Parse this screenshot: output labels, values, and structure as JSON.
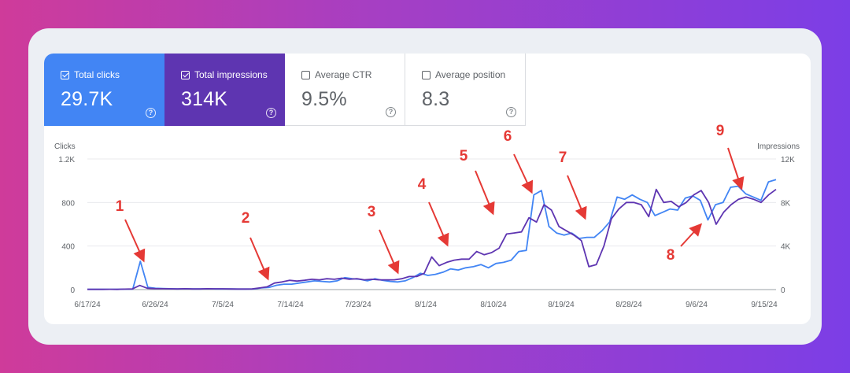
{
  "metrics": [
    {
      "label": "Total clicks",
      "value": "29.7K",
      "selected": true,
      "color": "#4285f4"
    },
    {
      "label": "Total impressions",
      "value": "314K",
      "selected": true,
      "color": "#5e35b1"
    },
    {
      "label": "Average CTR",
      "value": "9.5%",
      "selected": false
    },
    {
      "label": "Average position",
      "value": "8.3",
      "selected": false
    }
  ],
  "help_icon": "?",
  "chart": {
    "left_title": "Clicks",
    "right_title": "Impressions",
    "left_ticks": [
      "0",
      "400",
      "800",
      "1.2K"
    ],
    "right_ticks": [
      "0",
      "4K",
      "8K",
      "12K"
    ],
    "x_ticks": [
      "6/17/24",
      "6/26/24",
      "7/5/24",
      "7/14/24",
      "7/23/24",
      "8/1/24",
      "8/10/24",
      "8/19/24",
      "8/28/24",
      "9/6/24",
      "9/15/24"
    ]
  },
  "chart_data": {
    "type": "line",
    "x_start": "6/17/24",
    "x_end": "9/17/24",
    "grid": true,
    "left_axis": {
      "title": "Clicks",
      "ylim": [
        0,
        1200
      ]
    },
    "right_axis": {
      "title": "Impressions",
      "ylim": [
        0,
        12000
      ]
    },
    "series": [
      {
        "name": "Clicks",
        "axis": "left",
        "color": "#4285f4",
        "values": [
          2,
          2,
          2,
          3,
          2,
          4,
          4,
          260,
          20,
          12,
          10,
          8,
          6,
          8,
          6,
          6,
          8,
          6,
          6,
          6,
          5,
          5,
          6,
          15,
          20,
          40,
          50,
          50,
          60,
          70,
          80,
          75,
          70,
          80,
          110,
          100,
          95,
          80,
          100,
          85,
          75,
          70,
          80,
          110,
          150,
          130,
          140,
          160,
          190,
          180,
          200,
          210,
          230,
          200,
          240,
          250,
          270,
          350,
          360,
          870,
          910,
          580,
          520,
          500,
          520,
          470,
          480,
          480,
          540,
          620,
          850,
          830,
          870,
          830,
          800,
          680,
          710,
          740,
          730,
          840,
          860,
          820,
          640,
          780,
          800,
          940,
          950,
          880,
          850,
          820,
          990,
          1010
        ]
      },
      {
        "name": "Impressions",
        "axis": "right",
        "color": "#5e35b1",
        "values": [
          20,
          20,
          20,
          30,
          20,
          40,
          60,
          380,
          120,
          90,
          80,
          70,
          60,
          80,
          60,
          60,
          80,
          70,
          70,
          60,
          50,
          50,
          60,
          150,
          250,
          600,
          700,
          850,
          780,
          850,
          950,
          900,
          1000,
          950,
          1050,
          950,
          1000,
          900,
          950,
          900,
          900,
          900,
          1000,
          1200,
          1200,
          1500,
          3000,
          2200,
          2500,
          2700,
          2800,
          2800,
          3500,
          3200,
          3400,
          3800,
          5100,
          5200,
          5300,
          6600,
          6200,
          7800,
          7300,
          5800,
          5400,
          5000,
          4500,
          2100,
          2300,
          4000,
          6500,
          7400,
          8000,
          8000,
          7800,
          6700,
          9200,
          8000,
          8100,
          7600,
          8000,
          8700,
          9100,
          8000,
          6000,
          7100,
          7800,
          8300,
          8500,
          8300,
          8000,
          8700,
          9200
        ]
      }
    ],
    "annotations": [
      "1",
      "2",
      "3",
      "4",
      "5",
      "6",
      "7",
      "8",
      "9"
    ]
  }
}
